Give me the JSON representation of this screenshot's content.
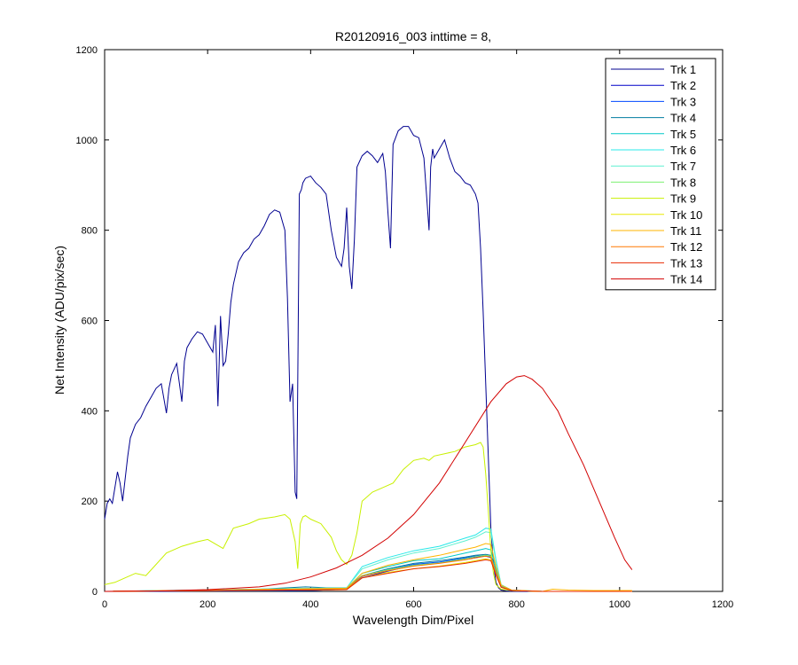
{
  "chart_data": {
    "type": "line",
    "title": "R20120916_003 inttime = 8,",
    "xlabel": "Wavelength Dim/Pixel",
    "ylabel": "Net Intensity (ADU/pix/sec)",
    "xlim": [
      0,
      1200
    ],
    "ylim": [
      0,
      1200
    ],
    "xticks": [
      "0",
      "200",
      "400",
      "600",
      "800",
      "1000",
      "1200"
    ],
    "yticks": [
      "0",
      "200",
      "400",
      "600",
      "800",
      "1000",
      "1200"
    ],
    "grid": false,
    "legend_position": "top-right",
    "series": [
      {
        "name": "Trk 1",
        "color": "#00008F",
        "x": [
          0,
          5,
          10,
          15,
          25,
          30,
          35,
          40,
          45,
          50,
          60,
          70,
          80,
          90,
          100,
          110,
          120,
          125,
          130,
          140,
          150,
          155,
          160,
          170,
          180,
          190,
          200,
          210,
          215,
          220,
          225,
          230,
          235,
          240,
          245,
          250,
          260,
          270,
          280,
          290,
          300,
          310,
          320,
          330,
          340,
          350,
          355,
          360,
          365,
          370,
          373,
          378,
          382,
          385,
          390,
          400,
          410,
          420,
          430,
          440,
          450,
          460,
          465,
          470,
          475,
          480,
          485,
          490,
          500,
          510,
          520,
          530,
          540,
          545,
          550,
          555,
          560,
          565,
          570,
          580,
          590,
          600,
          610,
          620,
          630,
          633,
          637,
          640,
          650,
          660,
          670,
          680,
          690,
          700,
          710,
          720,
          725,
          730,
          735,
          740,
          745,
          750,
          755,
          760,
          765,
          770,
          780,
          800,
          850,
          900,
          1000,
          1024
        ],
        "y": [
          160,
          195,
          205,
          195,
          265,
          240,
          200,
          250,
          300,
          340,
          370,
          385,
          410,
          430,
          450,
          460,
          395,
          450,
          480,
          505,
          420,
          510,
          540,
          560,
          575,
          570,
          550,
          530,
          590,
          410,
          610,
          500,
          510,
          570,
          640,
          680,
          730,
          750,
          760,
          780,
          790,
          810,
          835,
          845,
          840,
          800,
          650,
          420,
          460,
          220,
          205,
          880,
          890,
          905,
          915,
          920,
          905,
          895,
          880,
          800,
          740,
          720,
          760,
          850,
          720,
          670,
          780,
          940,
          965,
          975,
          965,
          950,
          970,
          930,
          840,
          760,
          990,
          1005,
          1020,
          1030,
          1030,
          1010,
          1005,
          960,
          800,
          940,
          980,
          960,
          980,
          1000,
          960,
          930,
          920,
          905,
          900,
          880,
          860,
          760,
          620,
          460,
          300,
          140,
          60,
          20,
          8,
          3,
          1,
          0,
          0,
          0,
          0,
          0
        ]
      },
      {
        "name": "Trk 2",
        "color": "#0000C8",
        "x": [
          0,
          400,
          470,
          500,
          550,
          600,
          650,
          700,
          720,
          740,
          750,
          760,
          770,
          790,
          850,
          1024
        ],
        "y": [
          0,
          2,
          5,
          30,
          45,
          58,
          63,
          72,
          76,
          78,
          75,
          40,
          10,
          2,
          0,
          0
        ]
      },
      {
        "name": "Trk 3",
        "color": "#0048FF",
        "x": [
          0,
          400,
          470,
          500,
          550,
          600,
          650,
          700,
          720,
          740,
          750,
          760,
          770,
          790,
          850,
          1024
        ],
        "y": [
          0,
          2,
          5,
          33,
          48,
          60,
          65,
          74,
          78,
          80,
          77,
          42,
          10,
          2,
          0,
          0
        ]
      },
      {
        "name": "Trk 4",
        "color": "#007BA0",
        "x": [
          0,
          200,
          300,
          390,
          430,
          470,
          500,
          550,
          600,
          650,
          700,
          720,
          740,
          750,
          760,
          770,
          790,
          850,
          1024
        ],
        "y": [
          0,
          3,
          5,
          10,
          8,
          8,
          35,
          50,
          62,
          68,
          76,
          80,
          82,
          80,
          45,
          12,
          2,
          0,
          0
        ]
      },
      {
        "name": "Trk 5",
        "color": "#00C8C8",
        "x": [
          0,
          470,
          500,
          550,
          600,
          650,
          700,
          720,
          740,
          750,
          760,
          770,
          790,
          850,
          1024
        ],
        "y": [
          0,
          6,
          40,
          55,
          68,
          72,
          85,
          90,
          95,
          92,
          50,
          12,
          2,
          0,
          0
        ]
      },
      {
        "name": "Trk 6",
        "color": "#28E8E8",
        "x": [
          0,
          470,
          500,
          550,
          600,
          650,
          700,
          720,
          740,
          750,
          760,
          770,
          790,
          850,
          1024
        ],
        "y": [
          0,
          8,
          55,
          75,
          90,
          100,
          118,
          125,
          140,
          138,
          70,
          15,
          3,
          0,
          0
        ]
      },
      {
        "name": "Trk 7",
        "color": "#5FF0D0",
        "x": [
          0,
          470,
          500,
          550,
          600,
          650,
          700,
          720,
          740,
          750,
          760,
          770,
          790,
          850,
          1024
        ],
        "y": [
          0,
          8,
          50,
          70,
          85,
          95,
          112,
          120,
          132,
          130,
          66,
          14,
          3,
          0,
          0
        ]
      },
      {
        "name": "Trk 8",
        "color": "#7CF070",
        "x": [
          0,
          470,
          500,
          550,
          600,
          650,
          700,
          720,
          740,
          750,
          760,
          770,
          790,
          850,
          1024
        ],
        "y": [
          0,
          5,
          35,
          48,
          58,
          63,
          72,
          77,
          80,
          78,
          42,
          10,
          2,
          0,
          0
        ]
      },
      {
        "name": "Trk 9",
        "color": "#C8F000",
        "x": [
          0,
          20,
          40,
          60,
          80,
          100,
          120,
          150,
          180,
          200,
          230,
          250,
          280,
          300,
          330,
          350,
          360,
          370,
          375,
          380,
          385,
          390,
          400,
          420,
          440,
          450,
          460,
          470,
          480,
          490,
          500,
          520,
          540,
          560,
          580,
          600,
          620,
          630,
          640,
          660,
          680,
          700,
          720,
          730,
          735,
          740,
          745,
          750,
          755,
          760,
          770,
          790,
          850,
          1024
        ],
        "y": [
          15,
          20,
          30,
          40,
          35,
          60,
          85,
          100,
          110,
          115,
          95,
          140,
          150,
          160,
          165,
          170,
          160,
          110,
          50,
          150,
          165,
          168,
          160,
          150,
          120,
          90,
          70,
          60,
          80,
          130,
          200,
          220,
          230,
          240,
          270,
          290,
          295,
          290,
          300,
          305,
          310,
          320,
          325,
          330,
          320,
          260,
          180,
          90,
          40,
          15,
          5,
          2,
          0,
          0
        ]
      },
      {
        "name": "Trk 10",
        "color": "#E8E800",
        "x": [
          0,
          470,
          500,
          550,
          600,
          650,
          700,
          720,
          740,
          750,
          760,
          770,
          790,
          850,
          1024
        ],
        "y": [
          0,
          4,
          30,
          42,
          50,
          56,
          64,
          68,
          72,
          70,
          38,
          9,
          2,
          0,
          0
        ]
      },
      {
        "name": "Trk 11",
        "color": "#FFB400",
        "x": [
          0,
          470,
          500,
          550,
          600,
          650,
          700,
          720,
          740,
          750,
          760,
          770,
          790,
          850,
          870,
          900,
          950,
          1024
        ],
        "y": [
          0,
          7,
          40,
          58,
          70,
          80,
          93,
          98,
          106,
          104,
          55,
          14,
          3,
          0,
          5,
          3,
          2,
          2
        ]
      },
      {
        "name": "Trk 12",
        "color": "#FF7800",
        "x": [
          0,
          470,
          500,
          550,
          600,
          650,
          700,
          720,
          740,
          750,
          760,
          770,
          790,
          850,
          1024
        ],
        "y": [
          0,
          5,
          34,
          46,
          56,
          62,
          70,
          74,
          78,
          76,
          40,
          10,
          2,
          0,
          0
        ]
      },
      {
        "name": "Trk 13",
        "color": "#E82800",
        "x": [
          0,
          470,
          500,
          550,
          600,
          650,
          700,
          720,
          740,
          750,
          760,
          770,
          790,
          850,
          1024
        ],
        "y": [
          0,
          4,
          30,
          40,
          50,
          55,
          62,
          66,
          70,
          68,
          36,
          9,
          2,
          0,
          0
        ]
      },
      {
        "name": "Trk 14",
        "color": "#D20000",
        "x": [
          0,
          100,
          200,
          300,
          350,
          400,
          450,
          500,
          550,
          600,
          650,
          700,
          750,
          780,
          800,
          815,
          830,
          850,
          880,
          900,
          930,
          960,
          990,
          1010,
          1024
        ],
        "y": [
          0,
          1,
          4,
          10,
          18,
          32,
          52,
          80,
          118,
          170,
          240,
          330,
          420,
          460,
          475,
          478,
          470,
          450,
          400,
          350,
          280,
          200,
          120,
          70,
          48
        ]
      }
    ]
  }
}
